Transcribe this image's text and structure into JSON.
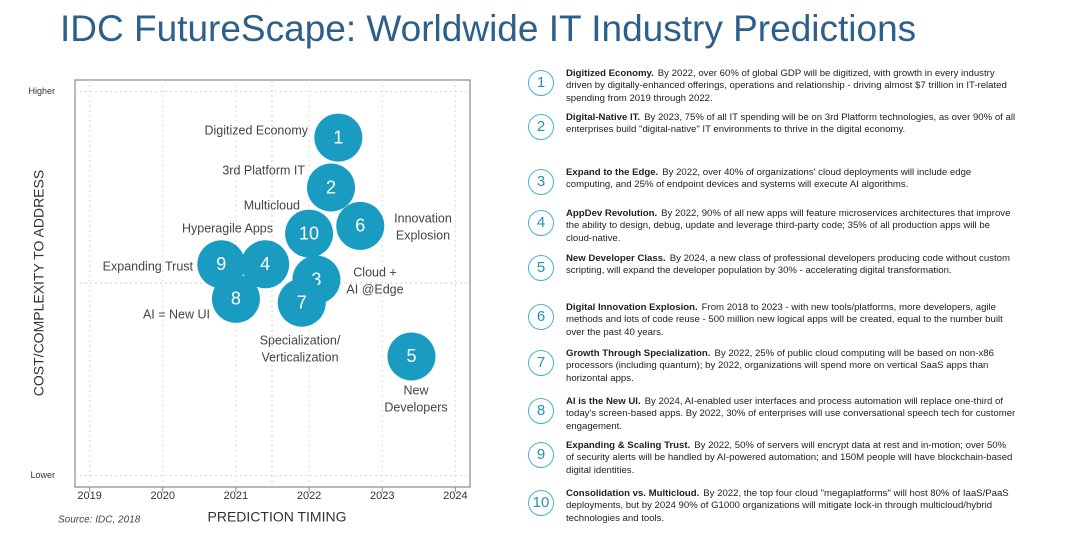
{
  "title": "IDC FutureScape: Worldwide IT Industry Predictions",
  "chart_data": {
    "type": "scatter",
    "x_label": "PREDICTION TIMING",
    "y_label": "COST/COMPLEXITY TO ADDRESS",
    "source": "Source: IDC, 2018",
    "labels": [
      "1",
      "2",
      "10",
      "6",
      "9",
      "4",
      "3",
      "8",
      "7",
      "5"
    ],
    "x": [
      2022.4,
      2022.3,
      2022.0,
      2022.7,
      2020.8,
      2021.4,
      2022.1,
      2021.0,
      2021.9,
      2023.4
    ],
    "values": [
      8.8,
      7.5,
      6.3,
      6.5,
      5.5,
      5.5,
      5.1,
      4.6,
      4.5,
      3.1
    ],
    "annotations": [
      [
        "Digitized Economy"
      ],
      [
        "3rd Platform IT"
      ],
      [
        "Multicloud"
      ],
      [
        "Innovation",
        "Explosion"
      ],
      [
        "Expanding Trust"
      ],
      [
        "Hyperagile Apps"
      ],
      [
        "Cloud +",
        "AI @Edge"
      ],
      [
        "AI = New UI"
      ],
      [
        "Specialization/",
        "Verticalization"
      ],
      [
        "New",
        "Developers"
      ]
    ],
    "color": "#1a9cc2",
    "xlim": [
      2018.8,
      2024.2
    ],
    "xticks": [
      2019,
      2020,
      2021,
      2022,
      2023,
      2024
    ],
    "ylim": [
      -0.3,
      10.3
    ],
    "yticks": [
      {
        "value": 0,
        "label": "Lower"
      },
      {
        "value": 10,
        "label": "Higher"
      }
    ],
    "grid": true
  },
  "predictions": [
    {
      "number": "1",
      "title": "Digitized Economy.",
      "text": "By 2022, over 60% of global GDP will be digitized, with growth in every industry driven by digitally-enhanced offerings, operations and relationship - driving almost $7 trillion in IT-related spending from 2019 through 2022."
    },
    {
      "number": "2",
      "title": "Digital-Native IT.",
      "text": "By 2023, 75% of all IT spending will be on 3rd Platform technologies, as over 90% of all enterprises build \"digital-native\" IT environments to thrive in the digital economy."
    },
    {
      "number": "3",
      "title": "Expand to the Edge.",
      "text": "By 2022, over 40% of organizations' cloud deployments will include edge computing, and 25% of endpoint devices and systems will execute AI algorithms."
    },
    {
      "number": "4",
      "title": "AppDev Revolution.",
      "text": "By 2022, 90% of all new apps will feature microservices architectures that improve the ability to design, debug, update and leverage third-party code; 35% of all production apps will be cloud-native."
    },
    {
      "number": "5",
      "title": "New Developer Class.",
      "text": "By 2024, a new class of professional developers producing code without custom scripting, will expand the developer population by 30% - accelerating digital transformation."
    },
    {
      "number": "6",
      "title": "Digital Innovation Explosion.",
      "text": "From 2018 to 2023 - with new tools/platforms, more developers, agile methods and lots of code reuse - 500 million new logical apps will be created, equal to the number built over the past 40 years."
    },
    {
      "number": "7",
      "title": "Growth Through Specialization.",
      "text": "By 2022, 25% of public cloud computing will be based on non-x86 processors (including quantum); by 2022, organizations will spend more on vertical SaaS apps than horizontal apps."
    },
    {
      "number": "8",
      "title": "AI is the New UI.",
      "text": "By 2024, AI-enabled user interfaces and process automation will replace one-third of today's screen-based apps.  By 2022, 30% of enterprises will use conversational speech tech for customer engagement."
    },
    {
      "number": "9",
      "title": "Expanding & Scaling Trust.",
      "text": "By 2022, 50% of servers will encrypt data at rest and in-motion; over 50% of security alerts will be handled by AI-powered automation; and 150M people will have blockchain-based digital identities."
    },
    {
      "number": "10",
      "title": "Consolidation vs. Multicloud.",
      "text": "By 2022, the top four cloud \"megaplatforms\" will host 80% of IaaS/PaaS deployments, but by 2024 90% of G1000 organizations will mitigate lock-in through multicloud/hybrid technologies and tools."
    }
  ]
}
